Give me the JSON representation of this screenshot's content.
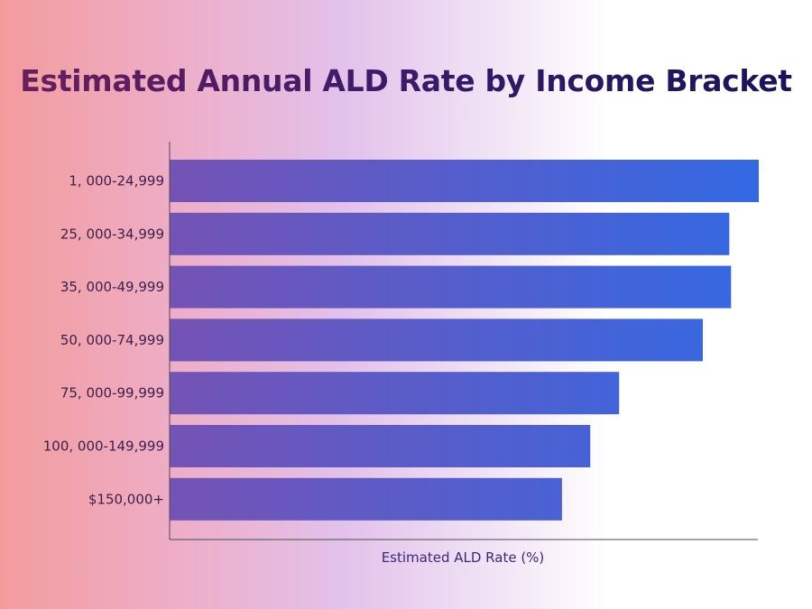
{
  "chart_data": {
    "type": "bar",
    "orientation": "horizontal",
    "title": "Estimated Annual ALD Rate by Income Bracket",
    "xlabel": "Estimated ALD Rate (%)",
    "ylabel": "",
    "categories": [
      "1, 000-24,999",
      "25, 000-34,999",
      "35, 000-49,999",
      "50, 000-74,999",
      "75, 000-99,999",
      "100, 000-149,999",
      "$150,000+"
    ],
    "values": [
      10.0,
      9.5,
      9.53,
      9.05,
      7.63,
      7.14,
      6.66
    ],
    "xlim": [
      0,
      10.0
    ],
    "grid": false,
    "colors": {
      "bar_start": "#7553b5",
      "bar_end": "#3369e4",
      "axis": "#4a4a4a"
    }
  }
}
